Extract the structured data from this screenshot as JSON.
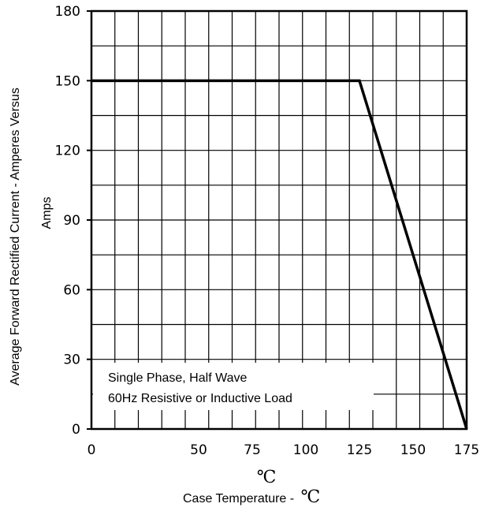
{
  "chart_data": {
    "type": "line",
    "title": "",
    "xlabel_prefix": "Case Temperature  -",
    "xlabel_unit": "℃",
    "x_unit_above": "℃",
    "ylabel_line1": "Average Forward Rectified Current - Amperes Versus",
    "ylabel_line2": "Amps",
    "xlim": [
      0,
      175
    ],
    "ylim": [
      0,
      180
    ],
    "x_ticks": [
      0,
      50,
      75,
      100,
      125,
      150,
      175
    ],
    "x_tick_labels": [
      "0",
      "50",
      "75",
      "100",
      "125",
      "150",
      "175"
    ],
    "y_ticks": [
      0,
      30,
      60,
      90,
      120,
      150,
      180
    ],
    "y_tick_labels": [
      "0",
      "30",
      "60",
      "90",
      "120",
      "150",
      "180"
    ],
    "grid": true,
    "legend": "none",
    "annotations": [
      "Single Phase, Half Wave",
      "60Hz Resistive or Inductive Load"
    ],
    "series": [
      {
        "x": [
          0,
          125,
          175
        ],
        "y": [
          150,
          150,
          0
        ]
      }
    ]
  }
}
